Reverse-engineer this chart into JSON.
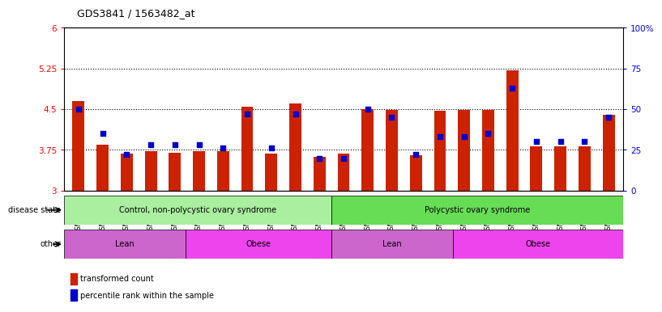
{
  "title": "GDS3841 / 1563482_at",
  "samples": [
    "GSM277438",
    "GSM277439",
    "GSM277440",
    "GSM277441",
    "GSM277442",
    "GSM277443",
    "GSM277444",
    "GSM277445",
    "GSM277446",
    "GSM277447",
    "GSM277448",
    "GSM277449",
    "GSM277450",
    "GSM277451",
    "GSM277452",
    "GSM277453",
    "GSM277454",
    "GSM277455",
    "GSM277456",
    "GSM277457",
    "GSM277458",
    "GSM277459",
    "GSM277460"
  ],
  "red_values": [
    4.65,
    3.85,
    3.68,
    3.73,
    3.7,
    3.72,
    3.72,
    4.55,
    3.68,
    4.6,
    3.62,
    3.68,
    4.5,
    4.48,
    3.65,
    4.47,
    4.49,
    4.49,
    5.22,
    3.82,
    3.82,
    3.82,
    4.4
  ],
  "blue_values": [
    50,
    35,
    22,
    28,
    28,
    28,
    26,
    47,
    26,
    47,
    20,
    20,
    50,
    45,
    22,
    33,
    33,
    35,
    63,
    30,
    30,
    30,
    45
  ],
  "ylim_left": [
    3.0,
    6.0
  ],
  "ylim_right": [
    0,
    100
  ],
  "yticks_left": [
    3.0,
    3.75,
    4.5,
    5.25,
    6.0
  ],
  "yticks_right": [
    0,
    25,
    50,
    75,
    100
  ],
  "ytick_labels_left": [
    "3",
    "3.75",
    "4.5",
    "5.25",
    "6"
  ],
  "ytick_labels_right": [
    "0",
    "25",
    "50",
    "75",
    "100%"
  ],
  "hlines": [
    3.75,
    4.5,
    5.25
  ],
  "disease_state_groups": [
    {
      "label": "Control, non-polycystic ovary syndrome",
      "start": 0,
      "end": 11,
      "color": "#AAEEA0"
    },
    {
      "label": "Polycystic ovary syndrome",
      "start": 11,
      "end": 23,
      "color": "#66DD55"
    }
  ],
  "other_groups": [
    {
      "label": "Lean",
      "start": 0,
      "end": 5,
      "color": "#CC66CC"
    },
    {
      "label": "Obese",
      "start": 5,
      "end": 11,
      "color": "#EE44EE"
    },
    {
      "label": "Lean",
      "start": 11,
      "end": 16,
      "color": "#CC66CC"
    },
    {
      "label": "Obese",
      "start": 16,
      "end": 23,
      "color": "#EE44EE"
    }
  ],
  "disease_state_label": "disease state",
  "other_label": "other",
  "legend_red": "transformed count",
  "legend_blue": "percentile rank within the sample",
  "bar_color": "#CC2200",
  "dot_color": "#0000CC",
  "bar_width": 0.5,
  "plot_bg": "white",
  "fig_bg": "white"
}
